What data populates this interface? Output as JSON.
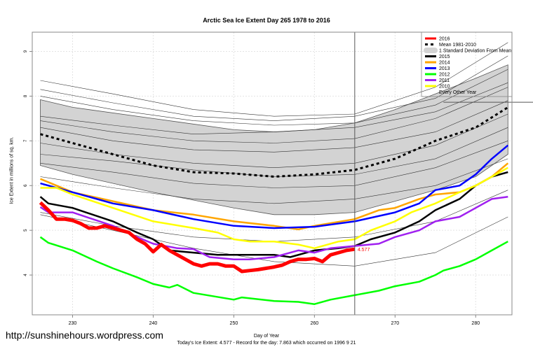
{
  "chart_data": {
    "type": "line",
    "title": "Arctic Sea Ice Extent Day 265 1978 to 2016",
    "xlabel": "Day of Year",
    "ylabel": "Ice Extent in millions of sq. km.",
    "xlim": [
      225,
      284.5
    ],
    "ylim": [
      3.11,
      9.43
    ],
    "xticks": [
      230,
      240,
      250,
      260,
      270,
      280
    ],
    "yticks": [
      4,
      5,
      6,
      7,
      8,
      9
    ],
    "grid": true,
    "legend_position": "top-right",
    "current_day": 265,
    "record_value": 7.863,
    "current_value_label": "4.577",
    "std_band": {
      "name": "1 Standard Deviation From Mean",
      "color": "#d3d3d3",
      "x": [
        226,
        230,
        240,
        250,
        255,
        260,
        265,
        270,
        275,
        280,
        284
      ],
      "upper": [
        7.92,
        7.75,
        7.5,
        7.25,
        7.2,
        7.25,
        7.4,
        7.7,
        8.05,
        8.4,
        8.7
      ],
      "lower": [
        6.45,
        6.25,
        5.85,
        5.5,
        5.35,
        5.35,
        5.4,
        5.65,
        5.9,
        6.2,
        6.7
      ]
    },
    "other_years": {
      "name": "Every Other Year",
      "color": "#333333",
      "lines": [
        {
          "x": [
            226,
            235,
            245,
            255,
            265,
            275,
            284
          ],
          "y": [
            8.35,
            8.05,
            7.7,
            7.55,
            7.6,
            8.2,
            9.2
          ]
        },
        {
          "x": [
            226,
            235,
            245,
            255,
            265,
            275,
            284
          ],
          "y": [
            8.15,
            7.85,
            7.55,
            7.45,
            7.55,
            7.95,
            8.9
          ]
        },
        {
          "x": [
            226,
            235,
            245,
            255,
            265,
            275,
            284
          ],
          "y": [
            8.0,
            7.7,
            7.45,
            7.35,
            7.4,
            7.8,
            8.6
          ]
        },
        {
          "x": [
            226,
            235,
            245,
            255,
            265,
            275,
            284
          ],
          "y": [
            7.55,
            7.35,
            7.15,
            7.2,
            7.3,
            7.65,
            8.3
          ]
        },
        {
          "x": [
            226,
            235,
            245,
            255,
            265,
            275,
            284
          ],
          "y": [
            7.45,
            7.2,
            7.0,
            6.95,
            7.05,
            7.5,
            8.2
          ]
        },
        {
          "x": [
            226,
            235,
            245,
            255,
            265,
            275,
            284
          ],
          "y": [
            7.3,
            7.0,
            6.8,
            6.75,
            6.85,
            7.2,
            7.9
          ]
        },
        {
          "x": [
            226,
            235,
            245,
            255,
            265,
            275,
            284
          ],
          "y": [
            6.95,
            6.7,
            6.5,
            6.4,
            6.5,
            6.9,
            7.6
          ]
        },
        {
          "x": [
            226,
            235,
            245,
            255,
            265,
            275,
            284
          ],
          "y": [
            6.7,
            6.55,
            6.35,
            6.2,
            6.25,
            6.6,
            7.3
          ]
        },
        {
          "x": [
            226,
            235,
            245,
            255,
            265,
            275,
            284
          ],
          "y": [
            6.5,
            6.3,
            6.05,
            5.95,
            6.0,
            6.4,
            7.0
          ]
        },
        {
          "x": [
            226,
            235,
            245,
            255,
            265,
            275,
            284
          ],
          "y": [
            6.2,
            5.95,
            5.7,
            5.6,
            5.7,
            6.0,
            6.6
          ]
        },
        {
          "x": [
            226,
            235,
            245,
            255,
            265,
            275,
            284
          ],
          "y": [
            5.4,
            5.1,
            4.85,
            4.75,
            4.85,
            5.2,
            5.9
          ]
        },
        {
          "x": [
            226,
            235,
            245,
            255,
            265,
            275,
            284
          ],
          "y": [
            5.35,
            5.0,
            4.6,
            4.3,
            4.2,
            4.5,
            5.3
          ]
        }
      ]
    },
    "mean": {
      "name": "Mean 1981-2010",
      "color": "#000000",
      "x": [
        226,
        230,
        235,
        240,
        245,
        250,
        255,
        260,
        265,
        270,
        275,
        280,
        284
      ],
      "y": [
        7.15,
        6.95,
        6.7,
        6.45,
        6.3,
        6.27,
        6.2,
        6.25,
        6.35,
        6.6,
        7.0,
        7.3,
        7.75
      ]
    },
    "series": [
      {
        "name": "2015",
        "color": "#000000",
        "x": [
          226,
          227,
          230,
          235,
          238,
          240,
          242,
          245,
          248,
          250,
          252,
          255,
          257,
          260,
          263,
          265,
          267,
          270,
          273,
          275,
          278,
          280,
          282,
          284
        ],
        "y": [
          5.75,
          5.6,
          5.5,
          5.2,
          4.95,
          4.8,
          4.55,
          4.5,
          4.45,
          4.45,
          4.45,
          4.45,
          4.4,
          4.55,
          4.6,
          4.65,
          4.8,
          4.95,
          5.2,
          5.45,
          5.7,
          6.0,
          6.2,
          6.3
        ]
      },
      {
        "name": "2014",
        "color": "#ffa500",
        "x": [
          226,
          230,
          235,
          240,
          245,
          250,
          255,
          258,
          260,
          265,
          268,
          270,
          273,
          275,
          278,
          280,
          282,
          284
        ],
        "y": [
          6.15,
          5.85,
          5.65,
          5.45,
          5.35,
          5.2,
          5.1,
          5.02,
          5.1,
          5.25,
          5.45,
          5.5,
          5.7,
          5.8,
          5.85,
          6.0,
          6.2,
          6.5
        ]
      },
      {
        "name": "2013",
        "color": "#0000ff",
        "x": [
          226,
          230,
          235,
          240,
          245,
          250,
          255,
          260,
          265,
          270,
          273,
          275,
          278,
          280,
          282,
          284
        ],
        "y": [
          6.05,
          5.85,
          5.6,
          5.45,
          5.25,
          5.1,
          5.05,
          5.08,
          5.2,
          5.4,
          5.6,
          5.9,
          6.0,
          6.25,
          6.6,
          6.9
        ]
      },
      {
        "name": "2012",
        "color": "#00ff00",
        "x": [
          226,
          227,
          230,
          233,
          235,
          238,
          240,
          242,
          243,
          245,
          250,
          251,
          255,
          258,
          260,
          262,
          265,
          268,
          270,
          273,
          275,
          276,
          278,
          280,
          282,
          284
        ],
        "y": [
          4.85,
          4.72,
          4.55,
          4.3,
          4.15,
          3.95,
          3.8,
          3.72,
          3.78,
          3.6,
          3.45,
          3.5,
          3.42,
          3.4,
          3.35,
          3.45,
          3.55,
          3.65,
          3.75,
          3.85,
          4.0,
          4.1,
          4.2,
          4.35,
          4.55,
          4.75
        ]
      },
      {
        "name": "2011",
        "color": "#a020f0",
        "x": [
          226,
          227,
          230,
          235,
          238,
          240,
          243,
          245,
          247,
          250,
          252,
          255,
          258,
          260,
          262,
          265,
          268,
          270,
          273,
          275,
          278,
          280,
          282,
          284
        ],
        "y": [
          5.52,
          5.4,
          5.4,
          5.1,
          4.85,
          4.7,
          4.6,
          4.58,
          4.4,
          4.35,
          4.35,
          4.4,
          4.55,
          4.5,
          4.6,
          4.65,
          4.7,
          4.85,
          5.0,
          5.2,
          5.3,
          5.5,
          5.7,
          5.75
        ]
      },
      {
        "name": "2010",
        "color": "#ffff00",
        "x": [
          226,
          228,
          230,
          235,
          240,
          245,
          248,
          250,
          252,
          255,
          258,
          260,
          263,
          265,
          267,
          270,
          272,
          275,
          278,
          280,
          282,
          284
        ],
        "y": [
          5.95,
          5.95,
          5.8,
          5.5,
          5.2,
          5.05,
          4.95,
          4.8,
          4.75,
          4.75,
          4.68,
          4.6,
          4.75,
          4.8,
          5.0,
          5.2,
          5.4,
          5.6,
          5.85,
          6.0,
          6.2,
          6.4
        ]
      },
      {
        "name": "2016",
        "color": "#ff0000",
        "x": [
          226,
          227,
          228,
          229,
          230,
          231,
          232,
          233,
          234,
          235,
          236,
          237,
          238,
          239,
          240,
          241,
          242,
          243,
          244,
          245,
          246,
          247,
          248,
          249,
          250,
          251,
          252,
          253,
          254,
          255,
          256,
          257,
          258,
          259,
          260,
          261,
          262,
          263,
          264,
          265
        ],
        "y": [
          5.62,
          5.45,
          5.25,
          5.25,
          5.22,
          5.15,
          5.05,
          5.05,
          5.1,
          5.05,
          5.0,
          4.95,
          4.8,
          4.7,
          4.52,
          4.68,
          4.55,
          4.45,
          4.35,
          4.25,
          4.2,
          4.25,
          4.25,
          4.2,
          4.2,
          4.08,
          4.1,
          4.12,
          4.15,
          4.18,
          4.22,
          4.3,
          4.35,
          4.35,
          4.37,
          4.3,
          4.45,
          4.5,
          4.55,
          4.577
        ]
      }
    ],
    "legend": [
      "2016",
      "Mean 1981-2010",
      "1 Standard Deviation From Mean",
      "2015",
      "2014",
      "2013",
      "2012",
      "2011",
      "2010",
      "Every Other Year"
    ]
  },
  "page": {
    "site": "http://sunshinehours.wordpress.com",
    "footer": "Today's Ice Extent: 4.577  - Record for the day: 7.863 which occurred on 1996 9 21"
  }
}
